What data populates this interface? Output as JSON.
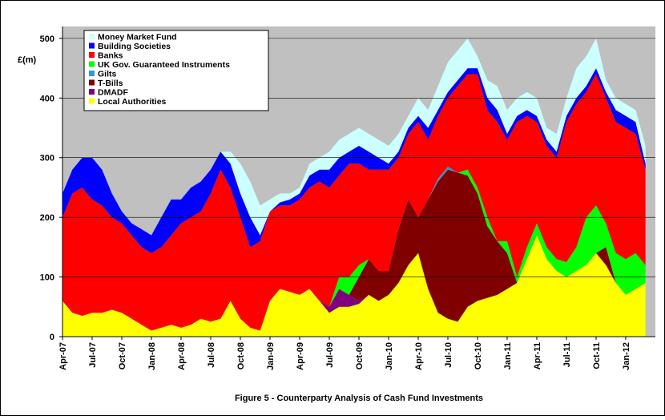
{
  "chart_data": {
    "type": "stacked_area",
    "title": "Figure 5  -  Counterparty Analysis of Cash Fund Investments",
    "y_label": "£(m)",
    "categories": [
      "Apr-07",
      null,
      null,
      "Jul-07",
      null,
      null,
      "Oct-07",
      null,
      null,
      "Jan-08",
      null,
      null,
      "Apr-08",
      null,
      null,
      "Jul-08",
      null,
      null,
      "Oct-08",
      null,
      null,
      "Jan-09",
      null,
      null,
      "Apr-09",
      null,
      null,
      "Jul-09",
      null,
      null,
      "Oct-09",
      null,
      null,
      "Jan-10",
      null,
      null,
      "Apr-10",
      null,
      null,
      "Jul-10",
      null,
      null,
      "Oct-10",
      null,
      null,
      "Jan-11",
      null,
      null,
      "Apr-11",
      null,
      null,
      "Jul-11",
      null,
      null,
      "Oct-11",
      null,
      null,
      "Jan-12",
      null,
      null
    ],
    "series": [
      {
        "name": "Money Market Fund",
        "color": "#ccffff",
        "values": [
          0,
          0,
          0,
          0,
          0,
          0,
          0,
          0,
          0,
          0,
          0,
          0,
          0,
          0,
          0,
          0,
          0,
          20,
          50,
          60,
          50,
          20,
          15,
          10,
          10,
          20,
          20,
          30,
          30,
          30,
          30,
          30,
          30,
          30,
          30,
          20,
          30,
          30,
          40,
          50,
          50,
          50,
          20,
          30,
          40,
          40,
          30,
          30,
          30,
          20,
          30,
          30,
          50,
          50,
          50,
          20,
          20,
          20,
          20,
          30
        ]
      },
      {
        "name": "Building Societies",
        "color": "#0000ff",
        "values": [
          40,
          40,
          50,
          70,
          60,
          40,
          20,
          20,
          30,
          30,
          50,
          60,
          40,
          50,
          50,
          40,
          30,
          40,
          40,
          50,
          10,
          0,
          5,
          10,
          10,
          20,
          20,
          30,
          30,
          20,
          30,
          30,
          20,
          10,
          10,
          10,
          10,
          20,
          10,
          10,
          10,
          10,
          10,
          20,
          20,
          10,
          10,
          10,
          10,
          10,
          10,
          10,
          10,
          10,
          10,
          10,
          20,
          20,
          20,
          10
        ]
      },
      {
        "name": "Banks",
        "color": "#ff0000",
        "values": [
          140,
          200,
          215,
          190,
          180,
          155,
          150,
          140,
          130,
          130,
          135,
          150,
          175,
          180,
          180,
          215,
          250,
          190,
          170,
          135,
          150,
          150,
          140,
          145,
          160,
          170,
          200,
          200,
          170,
          190,
          170,
          150,
          170,
          170,
          120,
          110,
          160,
          100,
          105,
          115,
          145,
          160,
          190,
          180,
          200,
          170,
          260,
          220,
          170,
          170,
          170,
          235,
          240,
          210,
          220,
          210,
          220,
          220,
          200,
          160
        ]
      },
      {
        "name": "UK Gov. Guaranteed Instruments",
        "color": "#00ff00",
        "values": [
          0,
          0,
          0,
          0,
          0,
          0,
          0,
          0,
          0,
          0,
          0,
          0,
          0,
          0,
          0,
          0,
          0,
          0,
          0,
          0,
          0,
          0,
          0,
          0,
          0,
          0,
          0,
          0,
          20,
          30,
          20,
          0,
          0,
          0,
          0,
          0,
          0,
          0,
          0,
          0,
          0,
          10,
          10,
          15,
          0,
          20,
          10,
          20,
          20,
          20,
          20,
          25,
          40,
          80,
          80,
          40,
          50,
          60,
          60,
          30
        ]
      },
      {
        "name": "Gilts",
        "color": "#3399cc",
        "values": [
          0,
          0,
          0,
          0,
          0,
          0,
          0,
          0,
          0,
          0,
          0,
          0,
          0,
          0,
          0,
          0,
          0,
          0,
          0,
          0,
          0,
          0,
          0,
          0,
          0,
          0,
          0,
          0,
          0,
          0,
          0,
          0,
          0,
          0,
          0,
          0,
          0,
          0,
          5,
          5,
          0,
          0,
          0,
          0,
          0,
          0,
          0,
          0,
          0,
          0,
          0,
          0,
          0,
          0,
          0,
          0,
          0,
          0,
          0,
          0
        ]
      },
      {
        "name": "T-Bills",
        "color": "#800000",
        "values": [
          0,
          0,
          0,
          0,
          0,
          0,
          0,
          0,
          0,
          0,
          0,
          0,
          0,
          0,
          0,
          0,
          0,
          0,
          0,
          0,
          0,
          0,
          0,
          0,
          0,
          0,
          0,
          0,
          0,
          0,
          40,
          60,
          50,
          40,
          90,
          110,
          60,
          150,
          220,
          250,
          250,
          220,
          180,
          120,
          90,
          60,
          0,
          0,
          0,
          0,
          0,
          0,
          0,
          0,
          0,
          30,
          0,
          0,
          0,
          0
        ]
      },
      {
        "name": "DMADF",
        "color": "#800080",
        "values": [
          0,
          0,
          0,
          0,
          0,
          0,
          0,
          0,
          0,
          0,
          0,
          0,
          0,
          0,
          0,
          0,
          0,
          0,
          0,
          0,
          0,
          0,
          0,
          0,
          0,
          0,
          0,
          10,
          30,
          20,
          5,
          0,
          0,
          0,
          0,
          0,
          0,
          0,
          0,
          0,
          0,
          0,
          0,
          0,
          0,
          0,
          0,
          0,
          0,
          0,
          0,
          0,
          0,
          0,
          0,
          0,
          0,
          0,
          0,
          0
        ]
      },
      {
        "name": "Local Authorities",
        "color": "#ffff00",
        "values": [
          60,
          40,
          35,
          40,
          40,
          45,
          40,
          30,
          20,
          10,
          15,
          20,
          15,
          20,
          30,
          25,
          30,
          60,
          30,
          15,
          10,
          60,
          80,
          75,
          70,
          80,
          60,
          40,
          50,
          50,
          55,
          70,
          60,
          70,
          90,
          120,
          140,
          80,
          40,
          30,
          25,
          50,
          60,
          65,
          70,
          80,
          90,
          130,
          170,
          130,
          110,
          100,
          110,
          120,
          140,
          120,
          90,
          70,
          80,
          90
        ]
      }
    ],
    "ylim": [
      0,
      520
    ],
    "yticks": [
      0,
      100,
      200,
      300,
      400,
      500
    ],
    "grid": true,
    "plot_background": "#c0c0c0"
  }
}
